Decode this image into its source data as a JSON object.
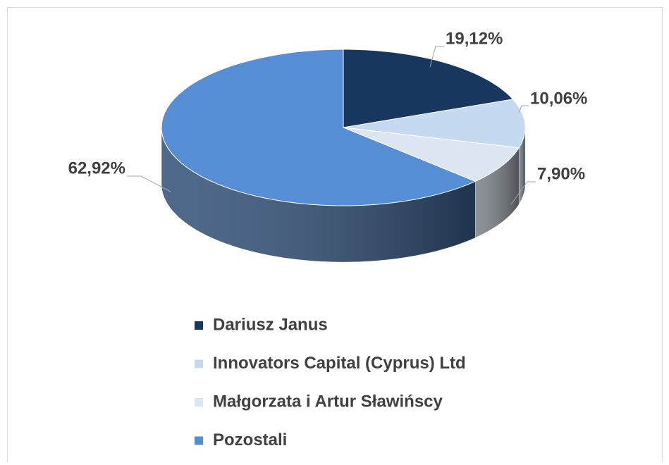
{
  "chart_data": {
    "type": "pie",
    "categories": [
      "Dariusz Janus",
      "Innovators Capital (Cyprus) Ltd",
      "Małgorzata i Artur Sławińscy",
      "Pozostali"
    ],
    "values": [
      19.12,
      10.06,
      7.9,
      62.92
    ],
    "value_labels": [
      "19,12%",
      "10,06%",
      "7,90%",
      "62,92%"
    ],
    "colors": [
      "#17375e",
      "#c5d9f1",
      "#dce6f2",
      "#558ed5"
    ],
    "legend": "bottom"
  }
}
